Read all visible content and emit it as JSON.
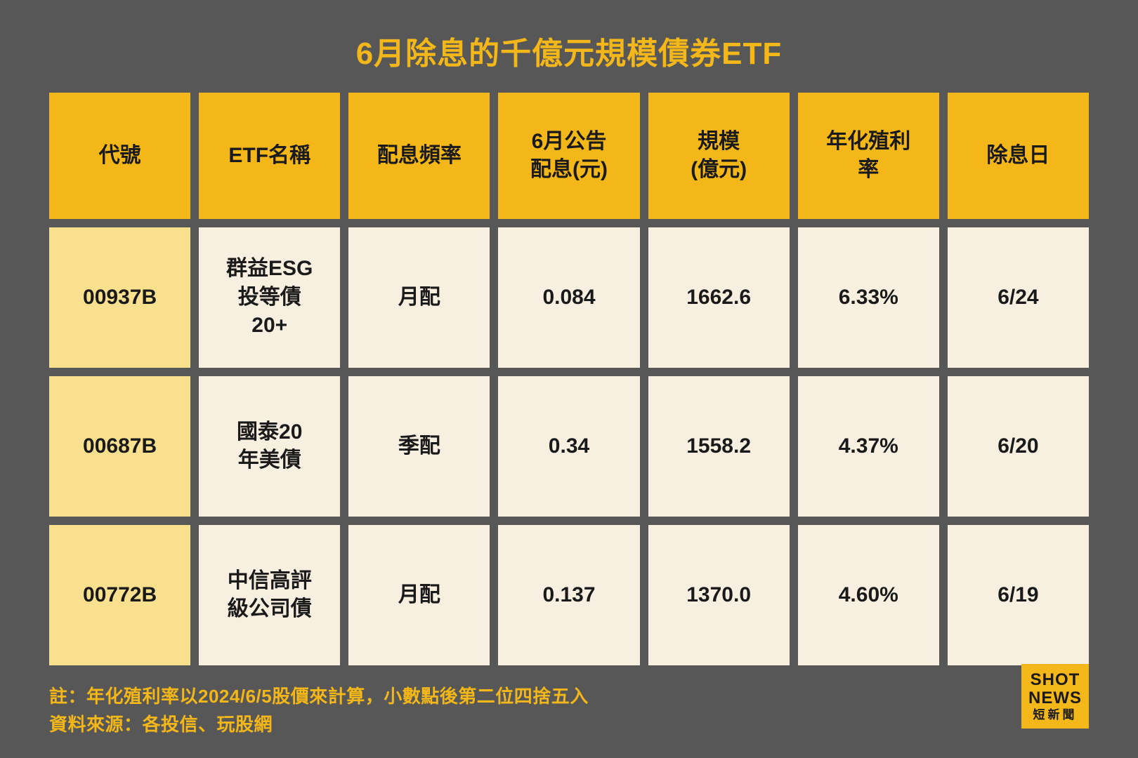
{
  "title": "6月除息的千億元規模債券ETF",
  "columns": [
    "代號",
    "ETF名稱",
    "配息頻率",
    "6月公告\n配息(元)",
    "規模\n(億元)",
    "年化殖利\n率",
    "除息日"
  ],
  "rows": [
    {
      "code": "00937B",
      "name": "群益ESG\n投等債\n20+",
      "freq": "月配",
      "dividend": "0.084",
      "scale": "1662.6",
      "yield": "6.33%",
      "date": "6/24"
    },
    {
      "code": "00687B",
      "name": "國泰20\n年美債",
      "freq": "季配",
      "dividend": "0.34",
      "scale": "1558.2",
      "yield": "4.37%",
      "date": "6/20"
    },
    {
      "code": "00772B",
      "name": "中信高評\n級公司債",
      "freq": "月配",
      "dividend": "0.137",
      "scale": "1370.0",
      "yield": "4.60%",
      "date": "6/19"
    }
  ],
  "note1": "註：年化殖利率以2024/6/5股價來計算，小數點後第二位四捨五入",
  "note2": "資料來源：各投信、玩股網",
  "logo": {
    "line1": "SHOT",
    "line2": "NEWS",
    "line3": "短新聞"
  },
  "colors": {
    "background": "#575757",
    "accent": "#f3b71a",
    "code_bg": "#f8e08f",
    "data_bg": "#f7efe0",
    "text": "#1a1a1a"
  }
}
